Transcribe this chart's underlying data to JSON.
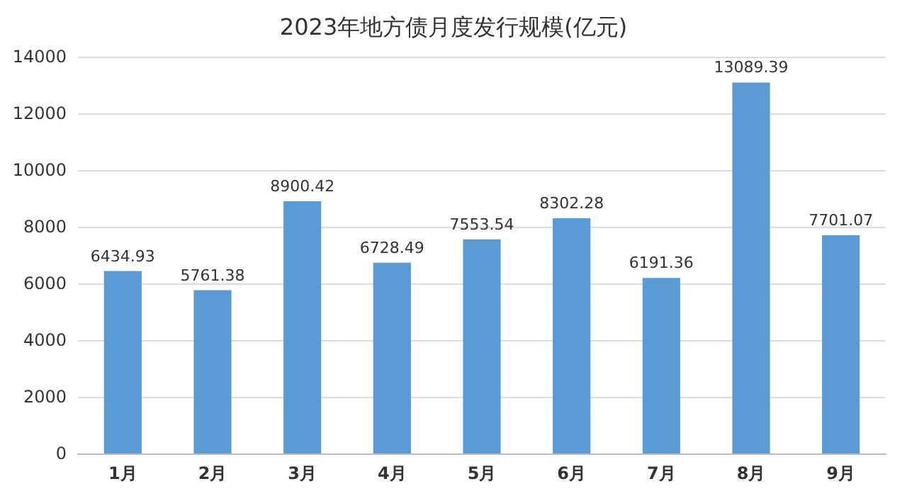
{
  "chart_data": {
    "type": "bar",
    "title": "2023年地方债月度发行规模(亿元)",
    "categories": [
      "1月",
      "2月",
      "3月",
      "4月",
      "5月",
      "6月",
      "7月",
      "8月",
      "9月"
    ],
    "values": [
      6434.93,
      5761.38,
      8900.42,
      6728.49,
      7553.54,
      8302.28,
      6191.36,
      13089.39,
      7701.07
    ],
    "color": "#5b9bd5",
    "ylim": [
      0,
      14000
    ],
    "yticks": [
      0,
      2000,
      4000,
      6000,
      8000,
      10000,
      12000,
      14000
    ],
    "grid": "y",
    "data_labels": true
  }
}
